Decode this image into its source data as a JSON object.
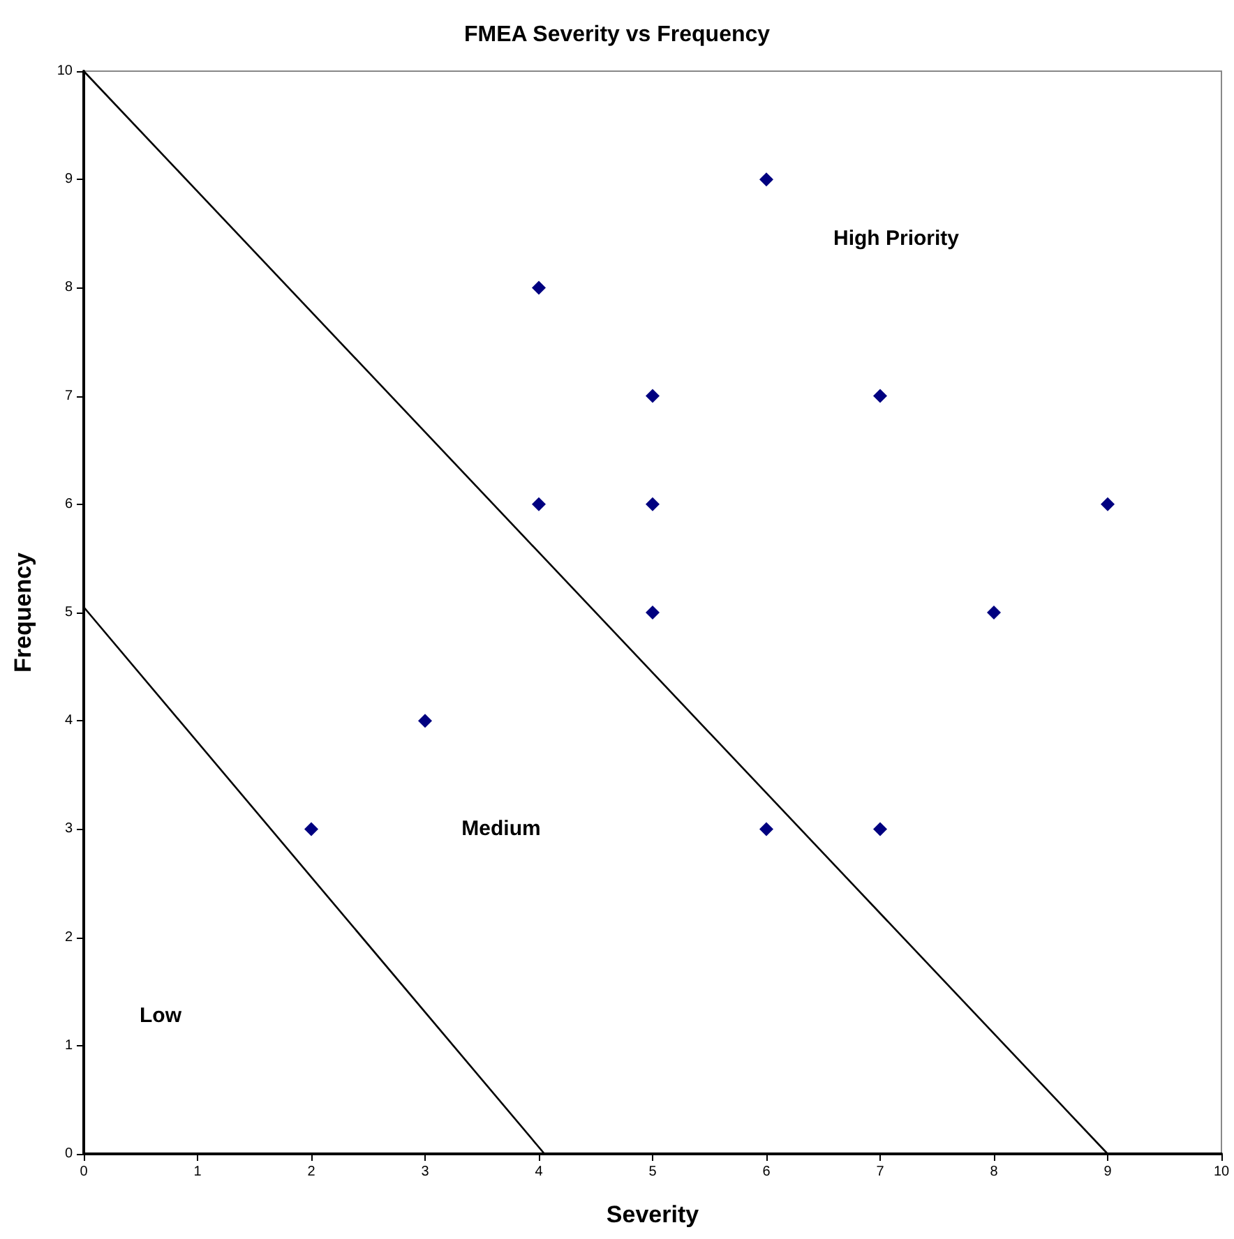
{
  "chart_data": {
    "type": "scatter",
    "title": "FMEA Severity vs Frequency",
    "xlabel": "Severity",
    "ylabel": "Frequency",
    "xlim": [
      0,
      10
    ],
    "ylim": [
      0,
      10
    ],
    "xticks": [
      0,
      1,
      2,
      3,
      4,
      5,
      6,
      7,
      8,
      9,
      10
    ],
    "yticks": [
      0,
      1,
      2,
      3,
      4,
      5,
      6,
      7,
      8,
      9,
      10
    ],
    "grid": false,
    "marker": "diamond",
    "series": [
      {
        "color": "#000080",
        "x": [
          2,
          3,
          4,
          4,
          5,
          5,
          5,
          6,
          6,
          7,
          7,
          8,
          9
        ],
        "values": [
          3,
          4,
          8,
          6,
          7,
          6,
          5,
          9,
          3,
          7,
          3,
          5,
          6
        ]
      },
      {
        "type": "line",
        "color": "#000000",
        "marker": "none",
        "x": [
          0,
          9
        ],
        "values": [
          10,
          0
        ]
      },
      {
        "type": "line",
        "color": "#000000",
        "marker": "none",
        "x": [
          0,
          4.05
        ],
        "values": [
          5.05,
          0
        ]
      }
    ],
    "annotations": [
      "High Priority",
      "Medium",
      "Low"
    ]
  }
}
